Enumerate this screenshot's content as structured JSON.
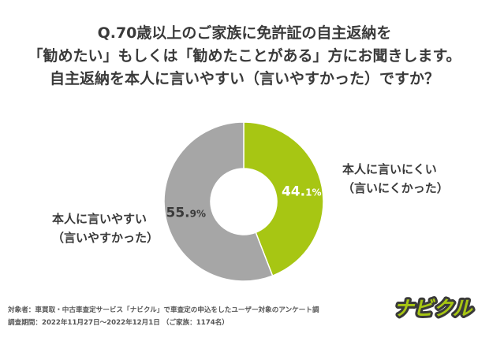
{
  "title": {
    "line1": "Q.70歳以上のご家族に免許証の自主返納を",
    "line2": "「勧めたい」もしくは「勧めたことがある」方にお聞きします。",
    "line3": "自主返納を本人に言いやすい（言いやすかった）ですか？"
  },
  "chart_data": {
    "type": "pie",
    "donut": true,
    "slices": [
      {
        "label": "本人に言いにくい（言いにくかった）",
        "value": 44.1,
        "value_text": "44.",
        "value_suffix": "1%",
        "color": "#a7c613",
        "text_color": "#ffffff"
      },
      {
        "label": "本人に言いやすい（言いやすかった）",
        "value": 55.9,
        "value_text": "55.",
        "value_suffix": "9%",
        "color": "#a6a6a6",
        "text_color": "#3a3a3a"
      }
    ]
  },
  "labels": {
    "right_line1": "本人に言いにくい",
    "right_line2": "（言いにくかった）",
    "left_line1": "本人に言いやすい",
    "left_line2": "（言いやすかった）"
  },
  "footer": {
    "line1": "対象者：車買取・中古車査定サービス「ナビクル」で車査定の申込をしたユーザー対象のアンケート調",
    "line2": "調査期間：2022年11月27日〜2022年12月1日 （ご家族：1174名）"
  },
  "logo": {
    "text": "ナビクル",
    "color": "#a7c613"
  }
}
